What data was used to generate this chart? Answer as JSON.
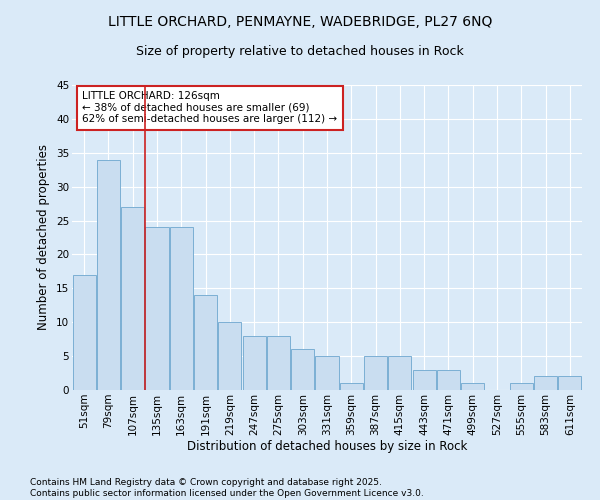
{
  "title1": "LITTLE ORCHARD, PENMAYNE, WADEBRIDGE, PL27 6NQ",
  "title2": "Size of property relative to detached houses in Rock",
  "xlabel": "Distribution of detached houses by size in Rock",
  "ylabel": "Number of detached properties",
  "categories": [
    "51sqm",
    "79sqm",
    "107sqm",
    "135sqm",
    "163sqm",
    "191sqm",
    "219sqm",
    "247sqm",
    "275sqm",
    "303sqm",
    "331sqm",
    "359sqm",
    "387sqm",
    "415sqm",
    "443sqm",
    "471sqm",
    "499sqm",
    "527sqm",
    "555sqm",
    "583sqm",
    "611sqm"
  ],
  "values": [
    17,
    34,
    27,
    24,
    24,
    14,
    10,
    8,
    8,
    6,
    5,
    1,
    5,
    5,
    3,
    3,
    1,
    0,
    1,
    2,
    2
  ],
  "bar_color": "#c9ddf0",
  "bar_edge_color": "#7bafd4",
  "background_color": "#daeaf8",
  "grid_color": "#ffffff",
  "vline_color": "#cc2222",
  "vline_x_idx": 2.5,
  "annotation_text": "LITTLE ORCHARD: 126sqm\n← 38% of detached houses are smaller (69)\n62% of semi-detached houses are larger (112) →",
  "annotation_box_color": "#ffffff",
  "annotation_border_color": "#cc2222",
  "ylim": [
    0,
    45
  ],
  "yticks": [
    0,
    5,
    10,
    15,
    20,
    25,
    30,
    35,
    40,
    45
  ],
  "footnote": "Contains HM Land Registry data © Crown copyright and database right 2025.\nContains public sector information licensed under the Open Government Licence v3.0.",
  "title_fontsize": 10,
  "subtitle_fontsize": 9,
  "axis_label_fontsize": 8.5,
  "tick_fontsize": 7.5,
  "annotation_fontsize": 7.5,
  "footnote_fontsize": 6.5
}
